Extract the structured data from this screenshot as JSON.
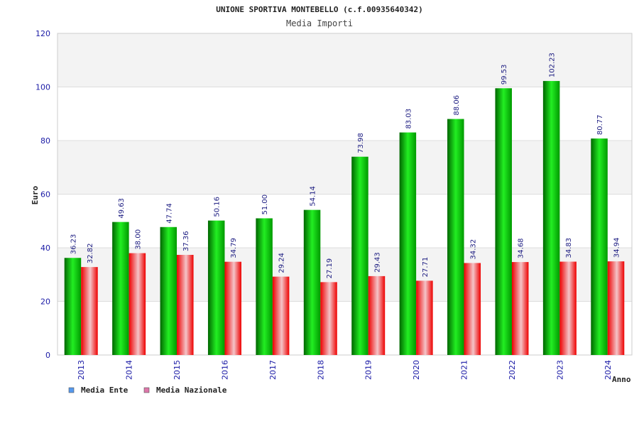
{
  "chart_data": {
    "type": "bar",
    "title": "UNIONE SPORTIVA MONTEBELLO (c.f.00935640342)",
    "subtitle": "Media Importi",
    "ylabel": "Euro",
    "xlabel": "Anno",
    "ylim": [
      0,
      120
    ],
    "yticks": [
      "0",
      "20",
      "40",
      "60",
      "80",
      "100",
      "120"
    ],
    "categories": [
      "2013",
      "2014",
      "2015",
      "2016",
      "2017",
      "2018",
      "2019",
      "2020",
      "2021",
      "2022",
      "2023",
      "2024"
    ],
    "series": [
      {
        "name": "Media Ente",
        "color": "#00b400",
        "legend_color": "#5599ee",
        "values": [
          36.23,
          49.63,
          47.74,
          50.16,
          51.0,
          54.14,
          73.98,
          83.03,
          88.06,
          99.53,
          102.23,
          80.77
        ],
        "labels": [
          "36.23",
          "49.63",
          "47.74",
          "50.16",
          "51.00",
          "54.14",
          "73.98",
          "83.03",
          "88.06",
          "99.53",
          "102.23",
          "80.77"
        ]
      },
      {
        "name": "Media Nazionale",
        "color": "#ee0000",
        "legend_color": "#dd77aa",
        "values": [
          32.82,
          38.0,
          37.36,
          34.79,
          29.24,
          27.19,
          29.43,
          27.71,
          34.32,
          34.68,
          34.83,
          34.94
        ],
        "labels": [
          "32.82",
          "38.00",
          "37.36",
          "34.79",
          "29.24",
          "27.19",
          "29.43",
          "27.71",
          "34.32",
          "34.68",
          "34.83",
          "34.94"
        ]
      }
    ],
    "grid": true,
    "legend_position": "bottom-left"
  }
}
